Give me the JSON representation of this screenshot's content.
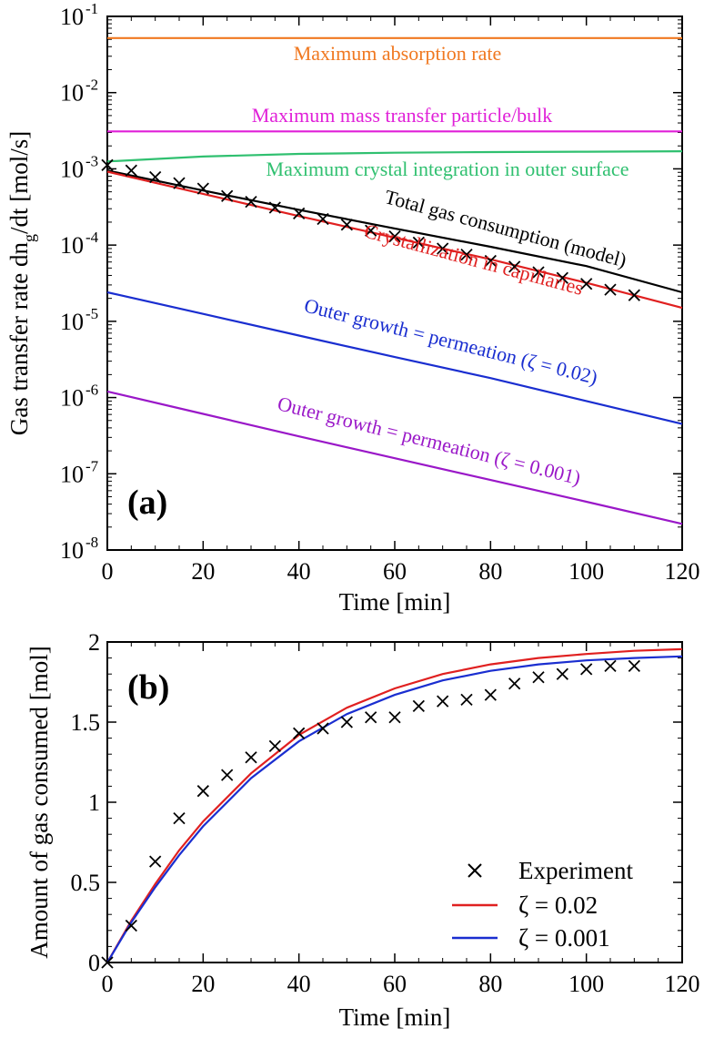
{
  "chart_data": [
    {
      "panel": "(a)",
      "type": "line",
      "xlabel": "Time [min]",
      "ylabel": "Gas transfer rate dn",
      "ylabel_sub": "g",
      "ylabel_tail": "/dt [mol/s]",
      "xlim": [
        0,
        120
      ],
      "ylim": [
        1e-08,
        0.1
      ],
      "yscale": "log",
      "xticks": [
        0,
        20,
        40,
        60,
        80,
        100,
        120
      ],
      "yticks_exp": [
        -8,
        -7,
        -6,
        -5,
        -4,
        -3,
        -2,
        -1
      ],
      "ytick_base": "10",
      "series": [
        {
          "label": "Maximum absorption rate",
          "color": "#f07820",
          "x": [
            0,
            120
          ],
          "y": [
            0.052,
            0.052
          ]
        },
        {
          "label": "Maximum mass transfer particle/bulk",
          "color": "#e020d8",
          "x": [
            0,
            120
          ],
          "y": [
            0.0031,
            0.0031
          ]
        },
        {
          "label": "Maximum crystal integration in outer surface",
          "color": "#30c070",
          "x": [
            0,
            20,
            40,
            60,
            80,
            100,
            120
          ],
          "y": [
            0.00125,
            0.00145,
            0.00157,
            0.00163,
            0.00166,
            0.00168,
            0.0017
          ]
        },
        {
          "label": "Total gas consumption (model)",
          "color": "#000000",
          "x": [
            0,
            20,
            40,
            60,
            80,
            100,
            120
          ],
          "y": [
            0.00095,
            0.00052,
            0.00029,
            0.000165,
            9.5e-05,
            5.3e-05,
            2.4e-05
          ]
        },
        {
          "label": "Crystallization in capillaries",
          "color": "#e02020",
          "x": [
            0,
            20,
            40,
            60,
            80,
            100,
            120
          ],
          "y": [
            0.00092,
            0.00047,
            0.00024,
            0.000125,
            6.5e-05,
            3.2e-05,
            1.5e-05
          ]
        },
        {
          "label": "Outer growth = permeation (ζ = 0.02)",
          "color": "#1a2ed0",
          "x": [
            0,
            20,
            40,
            60,
            80,
            100,
            120
          ],
          "y": [
            2.4e-05,
            1.25e-05,
            6.5e-06,
            3.4e-06,
            1.8e-06,
            9e-07,
            4.5e-07
          ]
        },
        {
          "label": "Outer growth = permeation (ζ = 0.001)",
          "color": "#9a18c8",
          "x": [
            0,
            20,
            40,
            60,
            80,
            100,
            120
          ],
          "y": [
            1.2e-06,
            6.1e-07,
            3.1e-07,
            1.6e-07,
            8.3e-08,
            4.3e-08,
            2.2e-08
          ]
        }
      ],
      "experiment": {
        "marker": "x",
        "x": [
          0,
          5,
          10,
          15,
          20,
          25,
          30,
          35,
          40,
          45,
          50,
          55,
          60,
          65,
          70,
          75,
          80,
          85,
          90,
          95,
          100,
          105,
          110
        ],
        "y": [
          0.00112,
          0.00095,
          0.00078,
          0.00065,
          0.00055,
          0.00044,
          0.00037,
          0.00031,
          0.00026,
          0.00022,
          0.000185,
          0.000155,
          0.00013,
          0.000108,
          9e-05,
          7.5e-05,
          6.2e-05,
          5.2e-05,
          4.4e-05,
          3.7e-05,
          3.1e-05,
          2.6e-05,
          2.2e-05
        ]
      }
    },
    {
      "panel": "(b)",
      "type": "line",
      "xlabel": "Time [min]",
      "ylabel": "Amount of gas consumed [mol]",
      "xlim": [
        0,
        120
      ],
      "ylim": [
        0,
        2
      ],
      "xticks": [
        0,
        20,
        40,
        60,
        80,
        100,
        120
      ],
      "yticks": [
        0,
        0.5,
        1,
        1.5,
        2
      ],
      "ytick_labels": [
        "0",
        "0.5",
        "1",
        "1.5",
        "2"
      ],
      "legend_position": "lower-right",
      "series": [
        {
          "name": "ζ = 0.02",
          "color": "#e02020",
          "x": [
            0,
            5,
            10,
            15,
            20,
            30,
            40,
            50,
            60,
            70,
            80,
            90,
            100,
            110,
            120
          ],
          "y": [
            0,
            0.26,
            0.49,
            0.7,
            0.88,
            1.18,
            1.42,
            1.59,
            1.71,
            1.8,
            1.86,
            1.9,
            1.925,
            1.945,
            1.955
          ]
        },
        {
          "name": "ζ = 0.001",
          "color": "#1a2ed0",
          "x": [
            0,
            5,
            10,
            15,
            20,
            30,
            40,
            50,
            60,
            70,
            80,
            90,
            100,
            110,
            120
          ],
          "y": [
            0,
            0.25,
            0.47,
            0.67,
            0.85,
            1.15,
            1.38,
            1.55,
            1.67,
            1.76,
            1.82,
            1.86,
            1.885,
            1.9,
            1.91
          ]
        }
      ],
      "experiment": {
        "name": "Experiment",
        "marker": "x",
        "x": [
          0,
          5,
          10,
          15,
          20,
          25,
          30,
          35,
          40,
          45,
          50,
          55,
          60,
          65,
          70,
          75,
          80,
          85,
          90,
          95,
          100,
          105,
          110
        ],
        "y": [
          0,
          0.23,
          0.63,
          0.9,
          1.07,
          1.17,
          1.28,
          1.35,
          1.43,
          1.46,
          1.5,
          1.53,
          1.53,
          1.6,
          1.63,
          1.64,
          1.67,
          1.74,
          1.78,
          1.8,
          1.83,
          1.85,
          1.85
        ]
      }
    }
  ]
}
